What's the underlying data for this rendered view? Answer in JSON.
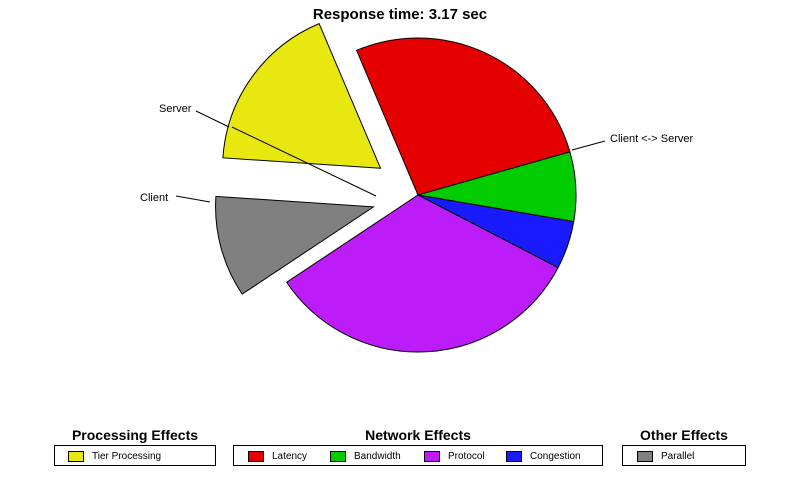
{
  "chart_data": {
    "type": "pie",
    "title": "Response time: 3.17 sec",
    "slices": [
      {
        "name": "Latency",
        "value": 24.5,
        "color": "#e50000",
        "group": "Network Effects",
        "exploded": false
      },
      {
        "name": "Bandwidth",
        "value": 6.5,
        "color": "#00cc00",
        "group": "Network Effects",
        "exploded": false
      },
      {
        "name": "Congestion",
        "value": 4.5,
        "color": "#1a1aff",
        "group": "Network Effects",
        "exploded": false
      },
      {
        "name": "Protocol",
        "value": 30.0,
        "color": "#bb1cf7",
        "group": "Network Effects",
        "exploded": false
      },
      {
        "name": "Parallel",
        "value": 9.5,
        "color": "#808080",
        "group": "Other Effects",
        "exploded": true
      },
      {
        "name": "Tier Processing",
        "value": 16.0,
        "color": "#e8e810",
        "group": "Processing Effects",
        "exploded": true
      }
    ],
    "annotations": [
      {
        "text": "Server"
      },
      {
        "text": "Client"
      },
      {
        "text": "Client <-> Server"
      }
    ],
    "legend_placement": "bottom"
  },
  "legend": {
    "groups": [
      {
        "title": "Processing Effects",
        "items": [
          "Tier Processing"
        ]
      },
      {
        "title": "Network Effects",
        "items": [
          "Latency",
          "Bandwidth",
          "Protocol",
          "Congestion"
        ]
      },
      {
        "title": "Other Effects",
        "items": [
          "Parallel"
        ]
      }
    ]
  }
}
